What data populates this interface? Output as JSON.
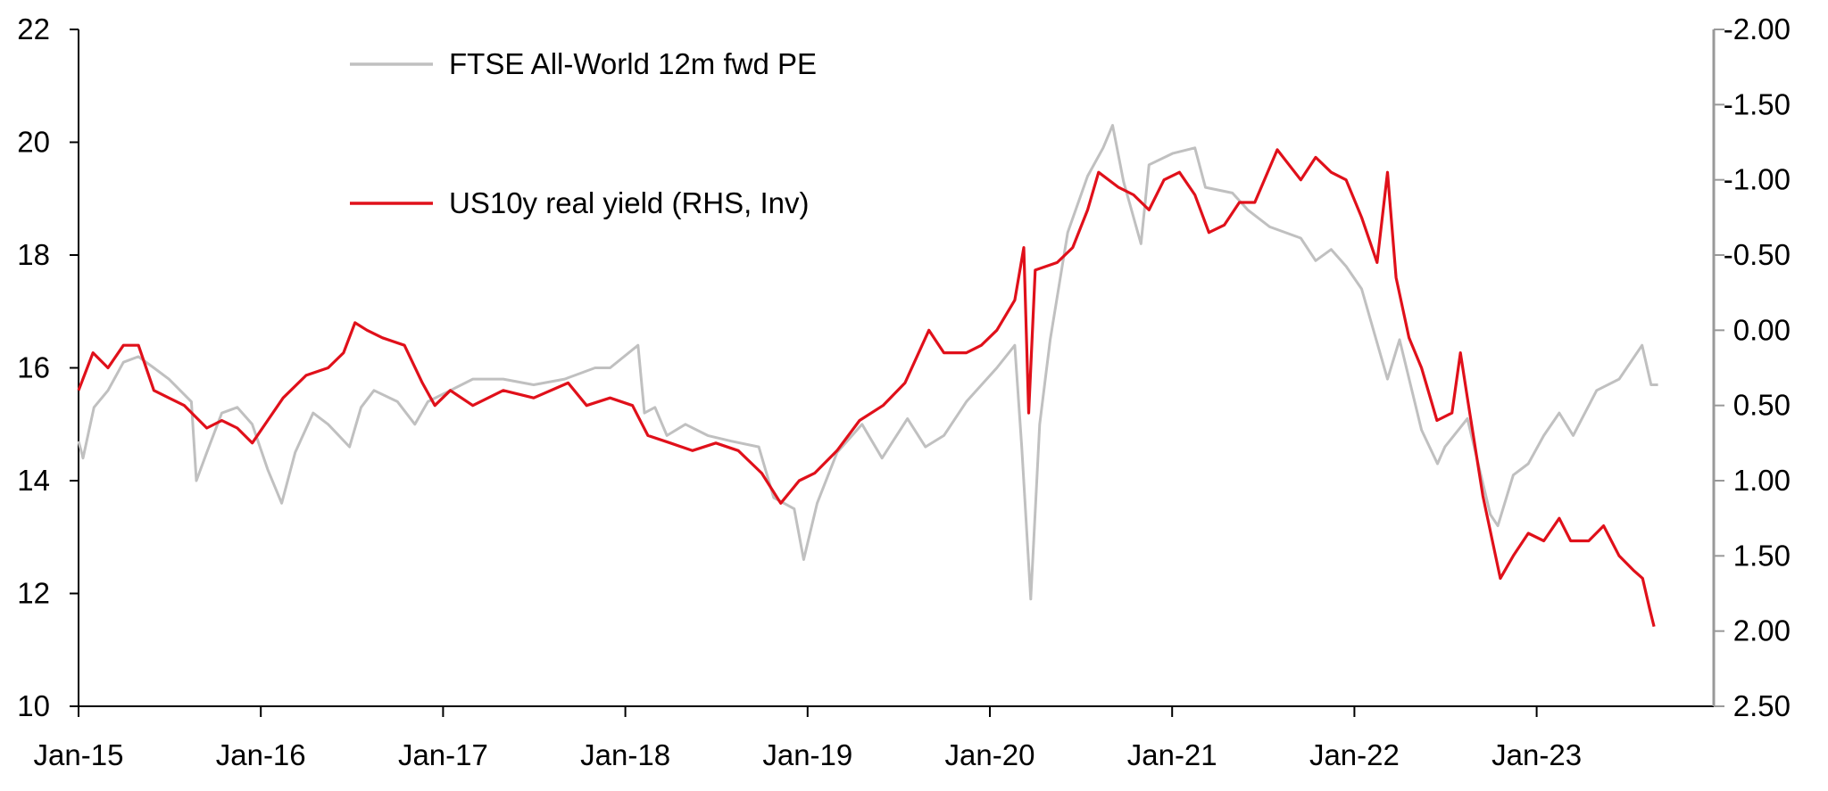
{
  "chart_data": {
    "type": "line",
    "title": "",
    "xlabel": "",
    "ylabel": "",
    "x_ticks": [
      "Jan-15",
      "Jan-16",
      "Jan-17",
      "Jan-18",
      "Jan-19",
      "Jan-20",
      "Jan-21",
      "Jan-22",
      "Jan-23"
    ],
    "y_left": {
      "ticks": [
        "10",
        "12",
        "14",
        "16",
        "18",
        "20",
        "22"
      ],
      "ylim": [
        10,
        22
      ]
    },
    "y_right": {
      "ticks": [
        "-2.00",
        "-1.50",
        "-1.00",
        "-0.50",
        "0.00",
        "0.50",
        "1.00",
        "1.50",
        "2.00",
        "2.50"
      ],
      "ylim": [
        -2.0,
        2.5
      ],
      "inverted": true
    },
    "legend": {
      "placement": "top-left"
    },
    "grid": false,
    "series": [
      {
        "name": "FTSE All-World 12m fwd PE",
        "axis": "left",
        "color": "#c0c0c0",
        "points": [
          [
            "2015-01-01",
            14.7
          ],
          [
            "2015-01-10",
            14.4
          ],
          [
            "2015-02-01",
            15.3
          ],
          [
            "2015-03-01",
            15.6
          ],
          [
            "2015-04-01",
            16.1
          ],
          [
            "2015-05-01",
            16.2
          ],
          [
            "2015-06-01",
            16.0
          ],
          [
            "2015-07-01",
            15.8
          ],
          [
            "2015-08-15",
            15.4
          ],
          [
            "2015-08-25",
            14.0
          ],
          [
            "2015-09-15",
            14.5
          ],
          [
            "2015-10-15",
            15.2
          ],
          [
            "2015-11-15",
            15.3
          ],
          [
            "2015-12-15",
            15.0
          ],
          [
            "2016-01-15",
            14.2
          ],
          [
            "2016-02-12",
            13.6
          ],
          [
            "2016-03-10",
            14.5
          ],
          [
            "2016-04-15",
            15.2
          ],
          [
            "2016-05-15",
            15.0
          ],
          [
            "2016-06-27",
            14.6
          ],
          [
            "2016-07-20",
            15.3
          ],
          [
            "2016-08-15",
            15.6
          ],
          [
            "2016-10-01",
            15.4
          ],
          [
            "2016-11-05",
            15.0
          ],
          [
            "2016-12-01",
            15.4
          ],
          [
            "2017-01-15",
            15.6
          ],
          [
            "2017-03-01",
            15.8
          ],
          [
            "2017-05-01",
            15.8
          ],
          [
            "2017-07-01",
            15.7
          ],
          [
            "2017-09-01",
            15.8
          ],
          [
            "2017-11-01",
            16.0
          ],
          [
            "2017-12-01",
            16.0
          ],
          [
            "2018-01-26",
            16.4
          ],
          [
            "2018-02-08",
            15.2
          ],
          [
            "2018-03-01",
            15.3
          ],
          [
            "2018-03-25",
            14.8
          ],
          [
            "2018-05-01",
            15.0
          ],
          [
            "2018-06-15",
            14.8
          ],
          [
            "2018-08-01",
            14.7
          ],
          [
            "2018-09-25",
            14.6
          ],
          [
            "2018-10-25",
            13.7
          ],
          [
            "2018-12-05",
            13.5
          ],
          [
            "2018-12-24",
            12.6
          ],
          [
            "2019-01-20",
            13.6
          ],
          [
            "2019-03-01",
            14.5
          ],
          [
            "2019-04-20",
            15.0
          ],
          [
            "2019-05-30",
            14.4
          ],
          [
            "2019-07-20",
            15.1
          ],
          [
            "2019-08-25",
            14.6
          ],
          [
            "2019-10-01",
            14.8
          ],
          [
            "2019-11-15",
            15.4
          ],
          [
            "2020-01-15",
            16.0
          ],
          [
            "2020-02-20",
            16.4
          ],
          [
            "2020-03-05",
            14.6
          ],
          [
            "2020-03-23",
            11.9
          ],
          [
            "2020-04-10",
            15.0
          ],
          [
            "2020-05-01",
            16.5
          ],
          [
            "2020-06-05",
            18.4
          ],
          [
            "2020-07-15",
            19.4
          ],
          [
            "2020-08-15",
            19.9
          ],
          [
            "2020-09-03",
            20.3
          ],
          [
            "2020-09-25",
            19.3
          ],
          [
            "2020-10-30",
            18.2
          ],
          [
            "2020-11-15",
            19.6
          ],
          [
            "2021-01-01",
            19.8
          ],
          [
            "2021-02-15",
            19.9
          ],
          [
            "2021-03-08",
            19.2
          ],
          [
            "2021-05-01",
            19.1
          ],
          [
            "2021-06-01",
            18.8
          ],
          [
            "2021-07-15",
            18.5
          ],
          [
            "2021-09-15",
            18.3
          ],
          [
            "2021-10-15",
            17.9
          ],
          [
            "2021-11-15",
            18.1
          ],
          [
            "2021-12-15",
            17.8
          ],
          [
            "2022-01-15",
            17.4
          ],
          [
            "2022-03-08",
            15.8
          ],
          [
            "2022-04-01",
            16.5
          ],
          [
            "2022-05-15",
            14.9
          ],
          [
            "2022-06-16",
            14.3
          ],
          [
            "2022-07-01",
            14.6
          ],
          [
            "2022-08-15",
            15.1
          ],
          [
            "2022-09-30",
            13.4
          ],
          [
            "2022-10-15",
            13.2
          ],
          [
            "2022-11-15",
            14.1
          ],
          [
            "2022-12-15",
            14.3
          ],
          [
            "2023-01-15",
            14.8
          ],
          [
            "2023-02-15",
            15.2
          ],
          [
            "2023-03-15",
            14.8
          ],
          [
            "2023-05-01",
            15.6
          ],
          [
            "2023-06-15",
            15.8
          ],
          [
            "2023-07-31",
            16.4
          ],
          [
            "2023-08-18",
            15.7
          ],
          [
            "2023-09-01",
            15.7
          ]
        ]
      },
      {
        "name": "US10y real yield (RHS, Inv)",
        "axis": "right",
        "color": "#e0101a",
        "points": [
          [
            "2015-01-01",
            0.4
          ],
          [
            "2015-01-30",
            0.15
          ],
          [
            "2015-03-01",
            0.25
          ],
          [
            "2015-04-01",
            0.1
          ],
          [
            "2015-05-01",
            0.1
          ],
          [
            "2015-06-01",
            0.4
          ],
          [
            "2015-07-01",
            0.45
          ],
          [
            "2015-08-01",
            0.5
          ],
          [
            "2015-09-15",
            0.65
          ],
          [
            "2015-10-15",
            0.6
          ],
          [
            "2015-11-15",
            0.65
          ],
          [
            "2015-12-15",
            0.75
          ],
          [
            "2016-01-15",
            0.6
          ],
          [
            "2016-02-15",
            0.45
          ],
          [
            "2016-04-01",
            0.3
          ],
          [
            "2016-05-15",
            0.25
          ],
          [
            "2016-06-15",
            0.15
          ],
          [
            "2016-07-08",
            -0.05
          ],
          [
            "2016-08-01",
            0.0
          ],
          [
            "2016-09-01",
            0.05
          ],
          [
            "2016-10-15",
            0.1
          ],
          [
            "2016-11-20",
            0.35
          ],
          [
            "2016-12-15",
            0.5
          ],
          [
            "2017-01-15",
            0.4
          ],
          [
            "2017-03-01",
            0.5
          ],
          [
            "2017-05-01",
            0.4
          ],
          [
            "2017-07-01",
            0.45
          ],
          [
            "2017-09-08",
            0.35
          ],
          [
            "2017-10-15",
            0.5
          ],
          [
            "2017-12-01",
            0.45
          ],
          [
            "2018-01-15",
            0.5
          ],
          [
            "2018-02-15",
            0.7
          ],
          [
            "2018-04-01",
            0.75
          ],
          [
            "2018-05-15",
            0.8
          ],
          [
            "2018-07-01",
            0.75
          ],
          [
            "2018-08-15",
            0.8
          ],
          [
            "2018-10-01",
            0.95
          ],
          [
            "2018-11-08",
            1.15
          ],
          [
            "2018-12-15",
            1.0
          ],
          [
            "2019-01-15",
            0.95
          ],
          [
            "2019-03-01",
            0.8
          ],
          [
            "2019-04-15",
            0.6
          ],
          [
            "2019-06-01",
            0.5
          ],
          [
            "2019-07-15",
            0.35
          ],
          [
            "2019-09-01",
            0.0
          ],
          [
            "2019-10-01",
            0.15
          ],
          [
            "2019-11-15",
            0.15
          ],
          [
            "2019-12-15",
            0.1
          ],
          [
            "2020-01-15",
            0.0
          ],
          [
            "2020-02-20",
            -0.2
          ],
          [
            "2020-03-09",
            -0.55
          ],
          [
            "2020-03-19",
            0.55
          ],
          [
            "2020-04-01",
            -0.4
          ],
          [
            "2020-05-15",
            -0.45
          ],
          [
            "2020-06-15",
            -0.55
          ],
          [
            "2020-07-15",
            -0.8
          ],
          [
            "2020-08-06",
            -1.05
          ],
          [
            "2020-09-15",
            -0.95
          ],
          [
            "2020-10-15",
            -0.9
          ],
          [
            "2020-11-15",
            -0.8
          ],
          [
            "2020-12-15",
            -1.0
          ],
          [
            "2021-01-15",
            -1.05
          ],
          [
            "2021-02-15",
            -0.9
          ],
          [
            "2021-03-15",
            -0.65
          ],
          [
            "2021-04-15",
            -0.7
          ],
          [
            "2021-05-15",
            -0.85
          ],
          [
            "2021-06-15",
            -0.85
          ],
          [
            "2021-07-30",
            -1.2
          ],
          [
            "2021-09-15",
            -1.0
          ],
          [
            "2021-10-15",
            -1.15
          ],
          [
            "2021-11-15",
            -1.05
          ],
          [
            "2021-12-15",
            -1.0
          ],
          [
            "2022-01-15",
            -0.75
          ],
          [
            "2022-02-15",
            -0.45
          ],
          [
            "2022-03-08",
            -1.05
          ],
          [
            "2022-03-25",
            -0.35
          ],
          [
            "2022-04-20",
            0.05
          ],
          [
            "2022-05-15",
            0.25
          ],
          [
            "2022-06-15",
            0.6
          ],
          [
            "2022-07-15",
            0.55
          ],
          [
            "2022-08-01",
            0.15
          ],
          [
            "2022-08-15",
            0.45
          ],
          [
            "2022-09-15",
            1.1
          ],
          [
            "2022-10-20",
            1.65
          ],
          [
            "2022-11-15",
            1.5
          ],
          [
            "2022-12-15",
            1.35
          ],
          [
            "2023-01-15",
            1.4
          ],
          [
            "2023-02-15",
            1.25
          ],
          [
            "2023-03-10",
            1.4
          ],
          [
            "2023-04-15",
            1.4
          ],
          [
            "2023-05-15",
            1.3
          ],
          [
            "2023-06-15",
            1.5
          ],
          [
            "2023-07-15",
            1.6
          ],
          [
            "2023-08-01",
            1.65
          ],
          [
            "2023-08-15",
            1.85
          ],
          [
            "2023-08-24",
            1.97
          ]
        ]
      }
    ]
  }
}
